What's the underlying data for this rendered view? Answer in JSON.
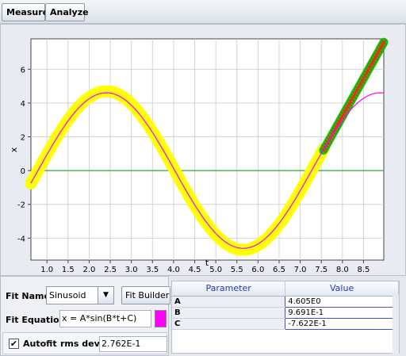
{
  "toolbar": {
    "measure_label": "Measure",
    "analyze_label": "Analyze"
  },
  "chart_data": {
    "type": "scatter",
    "xlabel": "t",
    "ylabel": "x",
    "xlim": [
      0.62,
      8.98
    ],
    "ylim": [
      -5.3,
      7.8
    ],
    "xticks": [
      "1.0",
      "1.5",
      "2.0",
      "2.5",
      "3.0",
      "3.5",
      "4.0",
      "4.5",
      "5.0",
      "5.5",
      "6.0",
      "6.5",
      "7.0",
      "7.5",
      "8.0",
      "8.5"
    ],
    "xtick_values": [
      1.0,
      1.5,
      2.0,
      2.5,
      3.0,
      3.5,
      4.0,
      4.5,
      5.0,
      5.5,
      6.0,
      6.5,
      7.0,
      7.5,
      8.0,
      8.5
    ],
    "yticks": [
      "6",
      "4",
      "2",
      "0",
      "-2",
      "-4"
    ],
    "ytick_values": [
      6,
      4,
      2,
      0,
      -2,
      -4
    ],
    "grid": true,
    "zero_line_color": "#33aa33",
    "data_color": "#ffff00",
    "selected_color": "#00cc00",
    "marker_color": "#ff2020",
    "fit_color": "#ff00ff",
    "fit_params": {
      "A": 4.605,
      "B": 0.9691,
      "C": -0.7622
    },
    "data_range": [
      0.62,
      7.55
    ],
    "selected_range": [
      7.55,
      8.98
    ],
    "selected_segment": {
      "x": [
        7.55,
        8.98
      ],
      "y": [
        1.2,
        7.6
      ]
    }
  },
  "fit": {
    "name_label": "Fit Name:",
    "name_value": "Sinusoid",
    "builder_label": "Fit Builder",
    "equation_label": "Fit Equation:",
    "equation_value": "x = A*sin(B*t+C)",
    "autofit_label": "Autofit",
    "autofit_check": "✔",
    "rms_label": "rms dev:",
    "rms_value": "2.762E-1"
  },
  "params": {
    "headers": [
      "Parameter",
      "Value"
    ],
    "rows": [
      {
        "name": "A",
        "value": "4.605E0"
      },
      {
        "name": "B",
        "value": "9.691E-1"
      },
      {
        "name": "C",
        "value": "-7.622E-1"
      }
    ]
  }
}
